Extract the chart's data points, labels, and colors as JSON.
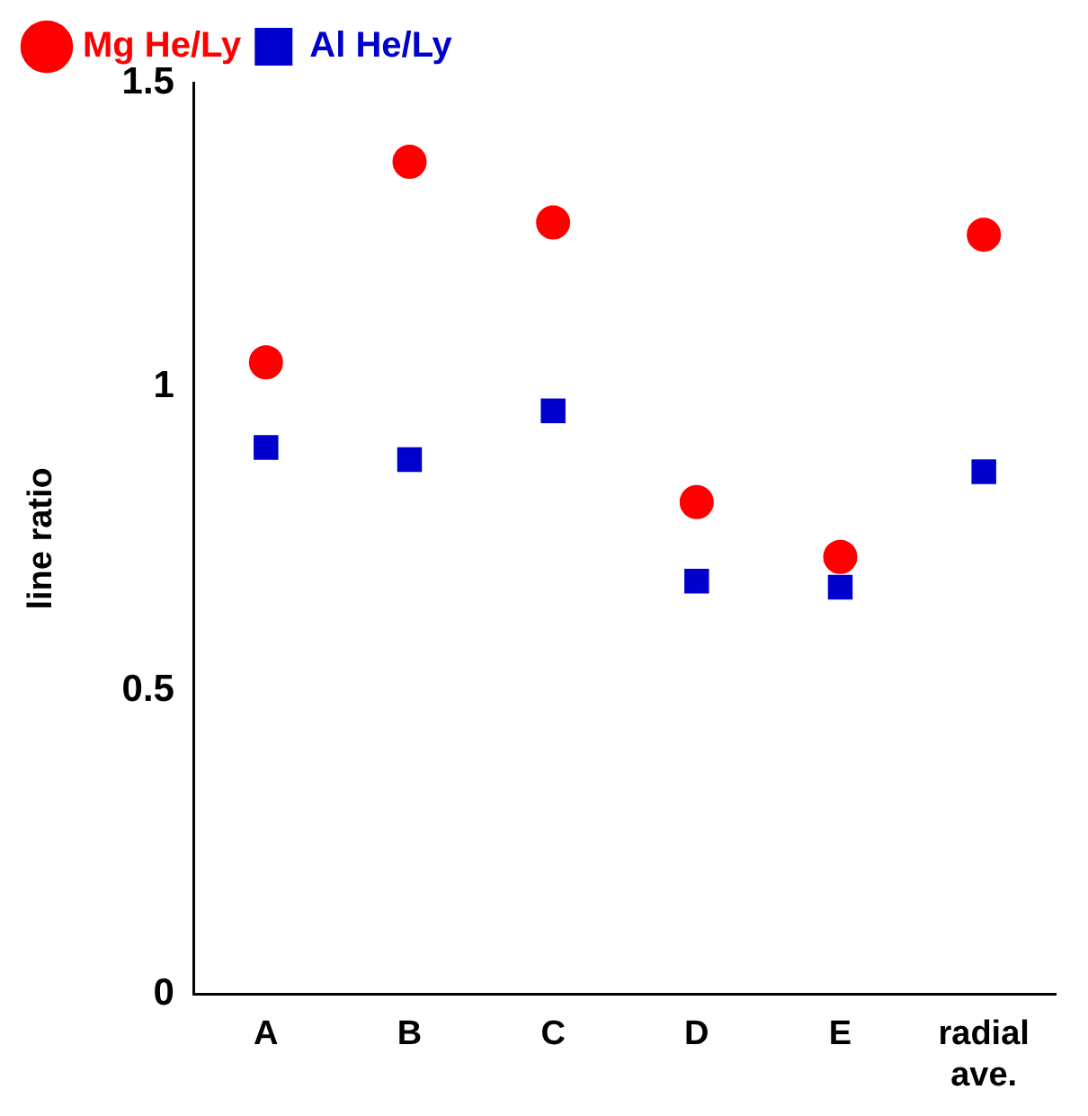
{
  "chart_data": {
    "type": "scatter",
    "ylabel": "line ratio",
    "categories": [
      "A",
      "B",
      "C",
      "D",
      "E",
      "radial ave."
    ],
    "series": [
      {
        "name": "Mg He/Ly",
        "color": "#ff0000",
        "marker": "circle",
        "values": [
          1.04,
          1.37,
          1.27,
          0.81,
          0.72,
          1.25
        ]
      },
      {
        "name": "Al He/Ly",
        "color": "#0000cc",
        "marker": "square",
        "values": [
          0.9,
          0.88,
          0.96,
          0.68,
          0.67,
          0.86
        ]
      }
    ],
    "ylim": [
      0,
      1.5
    ],
    "yticks": [
      0,
      0.5,
      1,
      1.5
    ],
    "grid": false,
    "legend": "top left"
  }
}
